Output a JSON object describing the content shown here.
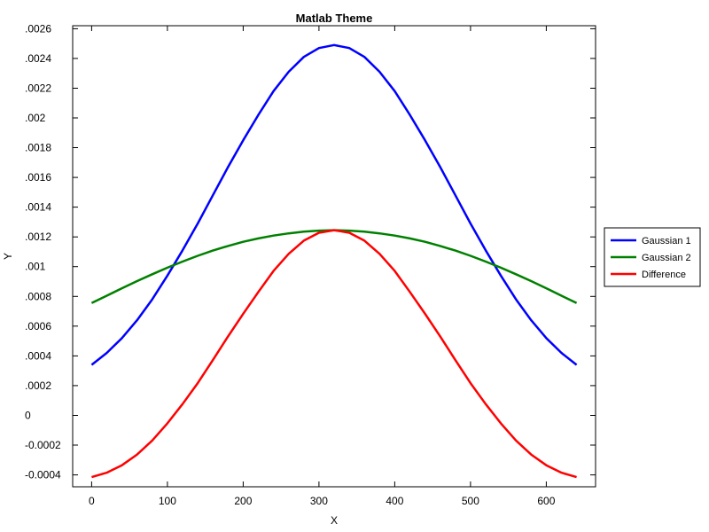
{
  "chart_data": {
    "type": "line",
    "title": "Matlab Theme",
    "xlabel": "X",
    "ylabel": "Y",
    "xlim": [
      -25,
      665
    ],
    "ylim": [
      -0.00048,
      0.00262
    ],
    "xticks": [
      0,
      100,
      200,
      300,
      400,
      500,
      600
    ],
    "xtick_labels": [
      "0",
      "100",
      "200",
      "300",
      "400",
      "500",
      "600"
    ],
    "yticks": [
      -0.0004,
      -0.0002,
      0,
      0.0002,
      0.0004,
      0.0006,
      0.0008,
      0.001,
      0.0012,
      0.0014,
      0.0016,
      0.0018,
      0.002,
      0.0022,
      0.0024,
      0.0026
    ],
    "ytick_labels": [
      "-0.0004",
      "-0.0002",
      "0",
      ".0002",
      ".0004",
      ".0006",
      ".0008",
      ".001",
      ".0012",
      ".0014",
      ".0016",
      ".0018",
      ".002",
      ".0022",
      ".0024",
      ".0026"
    ],
    "grid": false,
    "legend_position": "right",
    "x": [
      0,
      20,
      40,
      60,
      80,
      100,
      120,
      140,
      160,
      180,
      200,
      220,
      240,
      260,
      280,
      300,
      320,
      340,
      360,
      380,
      400,
      420,
      440,
      460,
      480,
      500,
      520,
      540,
      560,
      580,
      600,
      620,
      640
    ],
    "series": [
      {
        "name": "Gaussian 1",
        "color": "#0000ff",
        "values": [
          0.00034,
          0.00042,
          0.00052,
          0.00064,
          0.00078,
          0.00094,
          0.00111,
          0.00129,
          0.00148,
          0.00167,
          0.00185,
          0.00202,
          0.00218,
          0.00231,
          0.00241,
          0.00247,
          0.00249,
          0.00247,
          0.00241,
          0.00231,
          0.00218,
          0.00202,
          0.00185,
          0.00167,
          0.00148,
          0.00129,
          0.00111,
          0.00094,
          0.00078,
          0.00064,
          0.00052,
          0.00042,
          0.00034
        ]
      },
      {
        "name": "Gaussian 2",
        "color": "#008000",
        "values": [
          0.000755,
          0.000805,
          0.000855,
          0.000903,
          0.000949,
          0.000993,
          0.001034,
          0.001073,
          0.001108,
          0.001139,
          0.001167,
          0.00119,
          0.001209,
          0.001224,
          0.001235,
          0.001242,
          0.001245,
          0.001242,
          0.001235,
          0.001224,
          0.001209,
          0.00119,
          0.001167,
          0.001139,
          0.001108,
          0.001073,
          0.001034,
          0.000993,
          0.000949,
          0.000903,
          0.000855,
          0.000805,
          0.000755
        ]
      },
      {
        "name": "Difference",
        "color": "#ff0000",
        "values": [
          -0.000415,
          -0.000385,
          -0.000335,
          -0.000263,
          -0.000169,
          -5.3e-05,
          7.6e-05,
          0.000217,
          0.000372,
          0.000531,
          0.000683,
          0.00083,
          0.000971,
          0.001086,
          0.001175,
          0.001228,
          0.001245,
          0.001228,
          0.001175,
          0.001086,
          0.000971,
          0.00083,
          0.000683,
          0.000531,
          0.000372,
          0.000217,
          7.6e-05,
          -5.3e-05,
          -0.000169,
          -0.000263,
          -0.000335,
          -0.000385,
          -0.000415
        ]
      }
    ]
  }
}
